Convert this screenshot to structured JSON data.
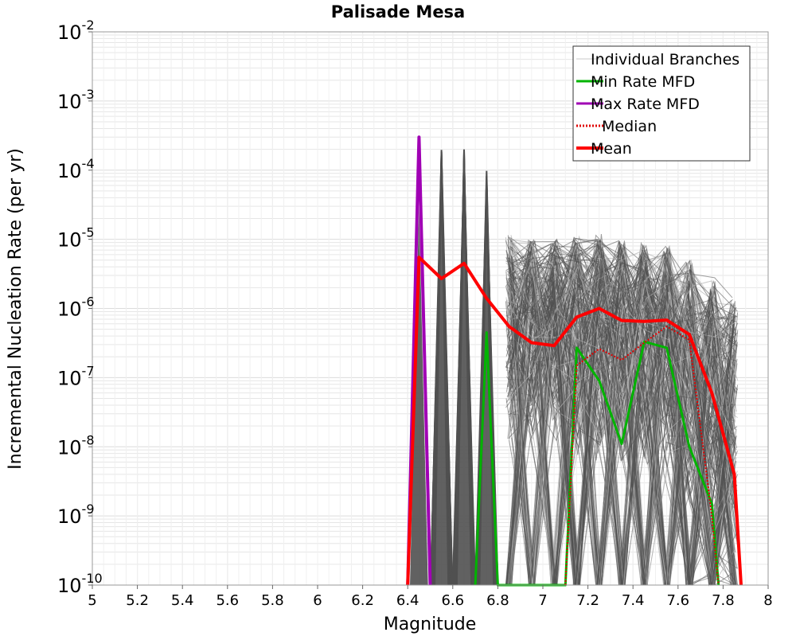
{
  "chart_data": {
    "type": "line",
    "title": "Palisade Mesa",
    "xlabel": "Magnitude",
    "ylabel": "Incremental Nucleation Rate (per yr)",
    "xlim": [
      5,
      8
    ],
    "ylim": [
      1e-10,
      0.01
    ],
    "y_scale": "log",
    "grid": true,
    "legend_position": "top-right",
    "x_ticks": [
      "5",
      "5.2",
      "5.4",
      "5.6",
      "5.8",
      "6",
      "6.2",
      "6.4",
      "6.6",
      "6.8",
      "7",
      "7.2",
      "7.4",
      "7.6",
      "7.8",
      "8"
    ],
    "y_ticks": [
      {
        "base": "10",
        "exp": "-10",
        "value": 1e-10
      },
      {
        "base": "10",
        "exp": "-9",
        "value": 1e-09
      },
      {
        "base": "10",
        "exp": "-8",
        "value": 1e-08
      },
      {
        "base": "10",
        "exp": "-7",
        "value": 1e-07
      },
      {
        "base": "10",
        "exp": "-6",
        "value": 1e-06
      },
      {
        "base": "10",
        "exp": "-5",
        "value": 1e-05
      },
      {
        "base": "10",
        "exp": "-4",
        "value": 0.0001
      },
      {
        "base": "10",
        "exp": "-3",
        "value": 0.001
      },
      {
        "base": "10",
        "exp": "-2",
        "value": 0.01
      }
    ],
    "colors": {
      "branches": "#505050",
      "branches_light": "#b4b4b4",
      "min": "#00b400",
      "max": "#a000b4",
      "median": "#e00000",
      "mean": "#ff0000",
      "grid": "#e6e6e6",
      "axis": "#999999"
    },
    "series": [
      {
        "name": "Min Rate MFD",
        "style": "solid",
        "x": [
          6.7,
          6.75,
          6.8,
          7.1,
          7.15,
          7.25,
          7.35,
          7.45,
          7.55,
          7.65,
          7.75,
          7.78
        ],
        "y": [
          1e-10,
          4.5e-07,
          1e-10,
          1e-10,
          2.7e-07,
          9e-08,
          1.1e-08,
          3.3e-07,
          2.7e-07,
          1e-08,
          1.5e-09,
          1e-10
        ]
      },
      {
        "name": "Max Rate MFD",
        "style": "solid",
        "x": [
          6.4,
          6.45,
          6.5
        ],
        "y": [
          1e-10,
          0.0003,
          1e-10
        ]
      },
      {
        "name": "Median",
        "style": "dotted",
        "x": [
          7.1,
          7.15,
          7.25,
          7.35,
          7.45,
          7.55,
          7.65,
          7.75,
          7.78
        ],
        "y": [
          1e-10,
          1.5e-07,
          2.6e-07,
          1.8e-07,
          3.2e-07,
          5.5e-07,
          3.5e-07,
          1e-09,
          1e-10
        ]
      },
      {
        "name": "Mean",
        "style": "solid",
        "x": [
          6.4,
          6.45,
          6.55,
          6.65,
          6.75,
          6.85,
          6.95,
          7.05,
          7.15,
          7.25,
          7.35,
          7.45,
          7.55,
          7.65,
          7.75,
          7.85,
          7.88
        ],
        "y": [
          1e-10,
          5.5e-06,
          2.7e-06,
          4.5e-06,
          1.4e-06,
          5.5e-07,
          3.2e-07,
          2.9e-07,
          7.5e-07,
          1e-06,
          6.7e-07,
          6.5e-07,
          6.8e-07,
          4.2e-07,
          6e-08,
          4e-09,
          1e-10
        ]
      }
    ],
    "branches": {
      "name": "Individual Branches",
      "spikes": [
        {
          "x": 6.55,
          "peak": 0.0002
        },
        {
          "x": 6.65,
          "peak": 0.0002
        },
        {
          "x": 6.75,
          "peak": 0.0001
        }
      ],
      "bins": [
        6.85,
        6.95,
        7.05,
        7.15,
        7.25,
        7.35,
        7.45,
        7.55,
        7.65,
        7.75,
        7.85
      ],
      "upper": [
        1.2e-05,
        1e-05,
        1e-05,
        1.1e-05,
        1.2e-05,
        1e-05,
        9e-06,
        8e-06,
        5e-06,
        3e-06,
        1.5e-06
      ],
      "lower": [
        1e-08,
        1e-08,
        1e-08,
        5e-09,
        5e-09,
        5e-09,
        5e-09,
        3e-09,
        1e-09,
        1e-10,
        1e-10
      ]
    }
  }
}
